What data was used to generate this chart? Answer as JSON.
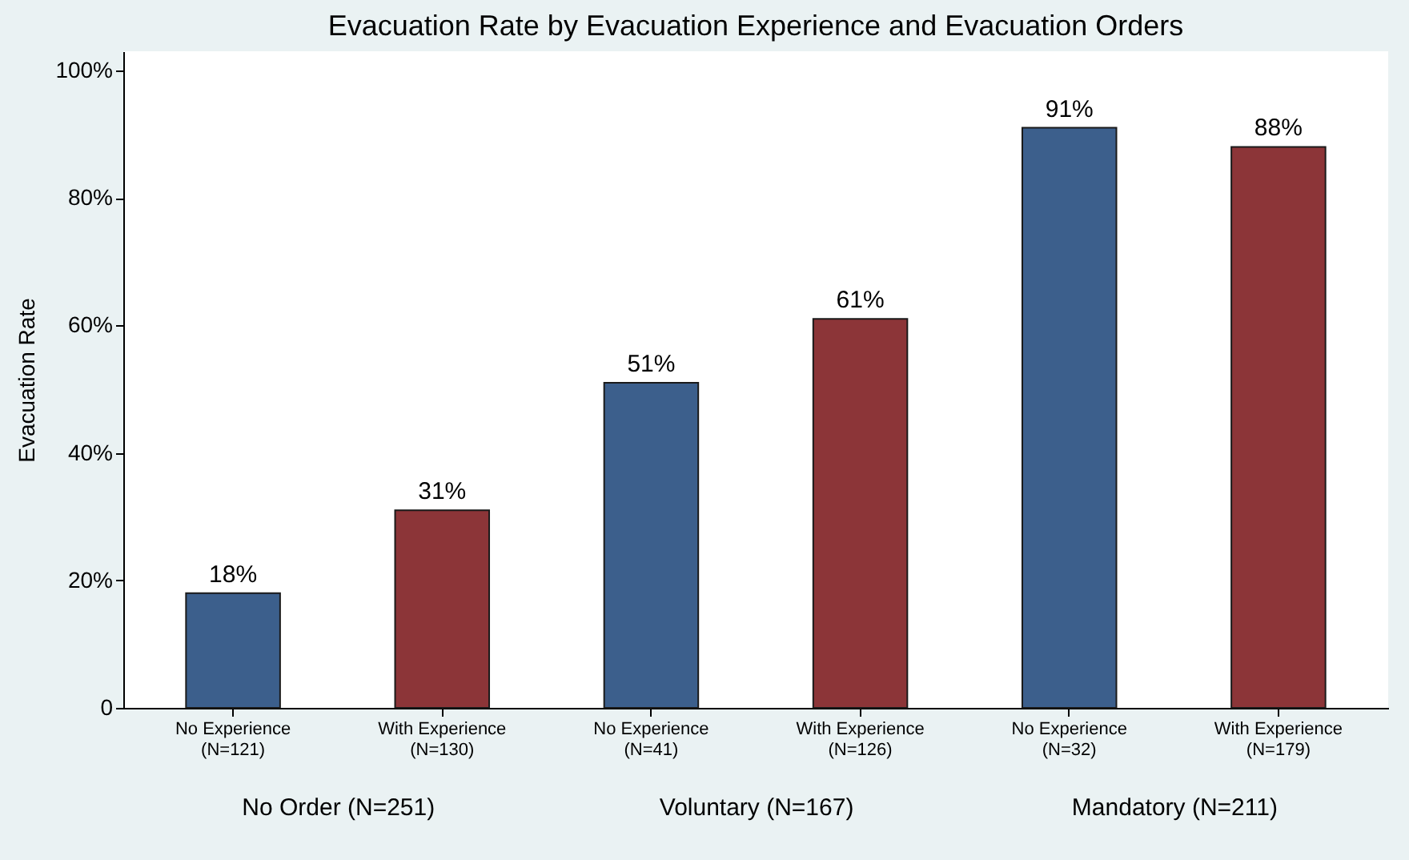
{
  "chart_data": {
    "type": "bar",
    "title": "Evacuation Rate by Evacuation Experience and Evacuation Orders",
    "ylabel": "Evacuation Rate",
    "categories": [
      "No Experience\n(N=121)",
      "With Experience\n(N=130)",
      "No Experience\n(N=41)",
      "With Experience\n(N=126)",
      "No Experience\n(N=32)",
      "With Experience\n(N=179)"
    ],
    "values": [
      18,
      31,
      51,
      61,
      91,
      88
    ],
    "value_labels": [
      "18%",
      "31%",
      "51%",
      "61%",
      "91%",
      "88%"
    ],
    "colors": [
      "#3c5f8c",
      "#8c3538",
      "#3c5f8c",
      "#8c3538",
      "#3c5f8c",
      "#8c3538"
    ],
    "ylim": [
      0,
      103
    ],
    "yticks": [
      0,
      {
        "value": 20,
        "label": "20%"
      },
      {
        "value": 40,
        "label": "40%"
      },
      {
        "value": 60,
        "label": "60%"
      },
      {
        "value": 80,
        "label": "80%"
      },
      {
        "value": 100,
        "label": "100%"
      }
    ],
    "annotations": [
      "No Order (N=251)",
      "Voluntary (N=167)",
      "Mandatory (N=211)"
    ],
    "grid": false
  }
}
